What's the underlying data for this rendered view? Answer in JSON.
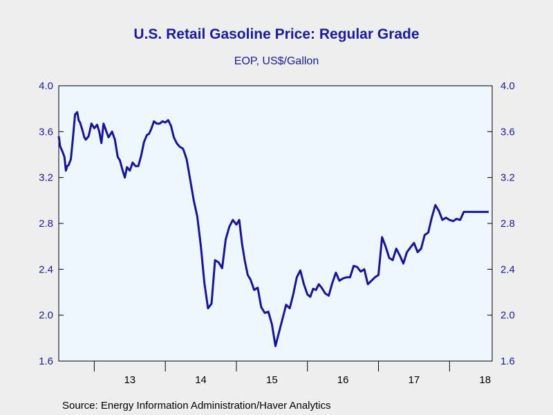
{
  "chart_data": {
    "type": "line",
    "title": "U.S. Retail Gasoline Price: Regular Grade",
    "subtitle": "EOP, US$/Gallon",
    "source": "Source:  Energy Information Administration/Haver Analytics",
    "xlabel": "",
    "ylabel": "",
    "ylim": [
      1.6,
      4.0
    ],
    "yticks": [
      "1.6",
      "2.0",
      "2.4",
      "2.8",
      "3.2",
      "3.6",
      "4.0"
    ],
    "xtick_labels": [
      "13",
      "14",
      "15",
      "16",
      "17",
      "18"
    ],
    "xlim": [
      2012.5,
      2018.6
    ],
    "grid": false,
    "colors": {
      "line": "#1414a0",
      "plot_bg": "#eef6fe",
      "page_bg": "#eeeeee",
      "text": "#1a1aa6"
    },
    "series": [
      {
        "x": [
          2012.5,
          2012.52,
          2012.55,
          2012.58,
          2012.6,
          2012.62,
          2012.64,
          2012.67,
          2012.7,
          2012.73,
          2012.76,
          2012.78,
          2012.8,
          2012.83,
          2012.86,
          2012.88,
          2012.92,
          2012.96,
          2013.0,
          2013.04,
          2013.07,
          2013.1,
          2013.13,
          2013.16,
          2013.2,
          2013.25,
          2013.29,
          2013.33,
          2013.36,
          2013.4,
          2013.43,
          2013.46,
          2013.5,
          2013.54,
          2013.58,
          2013.62,
          2013.66,
          2013.7,
          2013.74,
          2013.77,
          2013.8,
          2013.84,
          2013.88,
          2013.92,
          2013.96,
          2014.0,
          2014.04,
          2014.08,
          2014.12,
          2014.16,
          2014.2,
          2014.25,
          2014.3,
          2014.35,
          2014.4,
          2014.45,
          2014.5,
          2014.55,
          2014.6,
          2014.65,
          2014.7,
          2014.75,
          2014.8,
          2014.85,
          2014.9,
          2014.95,
          2015.0,
          2015.04,
          2015.08,
          2015.12,
          2015.16,
          2015.2,
          2015.25,
          2015.3,
          2015.35,
          2015.4,
          2015.45,
          2015.5,
          2015.55,
          2015.6,
          2015.65,
          2015.7,
          2015.75,
          2015.8,
          2015.85,
          2015.9,
          2015.95,
          2016.0,
          2016.04,
          2016.08,
          2016.12,
          2016.16,
          2016.2,
          2016.25,
          2016.3,
          2016.35,
          2016.4,
          2016.45,
          2016.5,
          2016.55,
          2016.6,
          2016.65,
          2016.7,
          2016.75,
          2016.8,
          2016.85,
          2016.9,
          2016.95,
          2017.0,
          2017.05,
          2017.1,
          2017.15,
          2017.2,
          2017.25,
          2017.3,
          2017.35,
          2017.4,
          2017.45,
          2017.5,
          2017.55,
          2017.6,
          2017.65,
          2017.7,
          2017.75,
          2017.8,
          2017.85,
          2017.9,
          2017.95,
          2018.0,
          2018.05,
          2018.1,
          2018.15,
          2018.2,
          2018.25,
          2018.3,
          2018.35,
          2018.4,
          2018.45,
          2018.5,
          2018.55
        ],
        "values": [
          3.56,
          3.47,
          3.43,
          3.38,
          3.26,
          3.3,
          3.31,
          3.36,
          3.55,
          3.75,
          3.77,
          3.7,
          3.68,
          3.62,
          3.55,
          3.53,
          3.56,
          3.67,
          3.63,
          3.66,
          3.6,
          3.5,
          3.67,
          3.62,
          3.55,
          3.6,
          3.53,
          3.38,
          3.35,
          3.26,
          3.2,
          3.29,
          3.26,
          3.33,
          3.3,
          3.3,
          3.39,
          3.51,
          3.57,
          3.58,
          3.62,
          3.69,
          3.67,
          3.67,
          3.69,
          3.68,
          3.7,
          3.65,
          3.55,
          3.5,
          3.47,
          3.45,
          3.36,
          3.18,
          3.0,
          2.86,
          2.6,
          2.28,
          2.06,
          2.1,
          2.48,
          2.46,
          2.41,
          2.66,
          2.77,
          2.83,
          2.79,
          2.83,
          2.62,
          2.47,
          2.35,
          2.31,
          2.22,
          2.24,
          2.07,
          2.02,
          2.03,
          1.92,
          1.73,
          1.85,
          1.97,
          2.09,
          2.06,
          2.18,
          2.33,
          2.39,
          2.27,
          2.18,
          2.16,
          2.23,
          2.22,
          2.27,
          2.24,
          2.19,
          2.17,
          2.28,
          2.37,
          2.3,
          2.32,
          2.33,
          2.33,
          2.43,
          2.42,
          2.38,
          2.4,
          2.27,
          2.3,
          2.33,
          2.35,
          2.68,
          2.6,
          2.5,
          2.48,
          2.58,
          2.52,
          2.45,
          2.55,
          2.59,
          2.63,
          2.55,
          2.58,
          2.7,
          2.72,
          2.85,
          2.96,
          2.91,
          2.83,
          2.85,
          2.83,
          2.82,
          2.84,
          2.83,
          2.9,
          2.9,
          2.9,
          2.9,
          2.9,
          2.9,
          2.9,
          2.9
        ]
      }
    ]
  }
}
